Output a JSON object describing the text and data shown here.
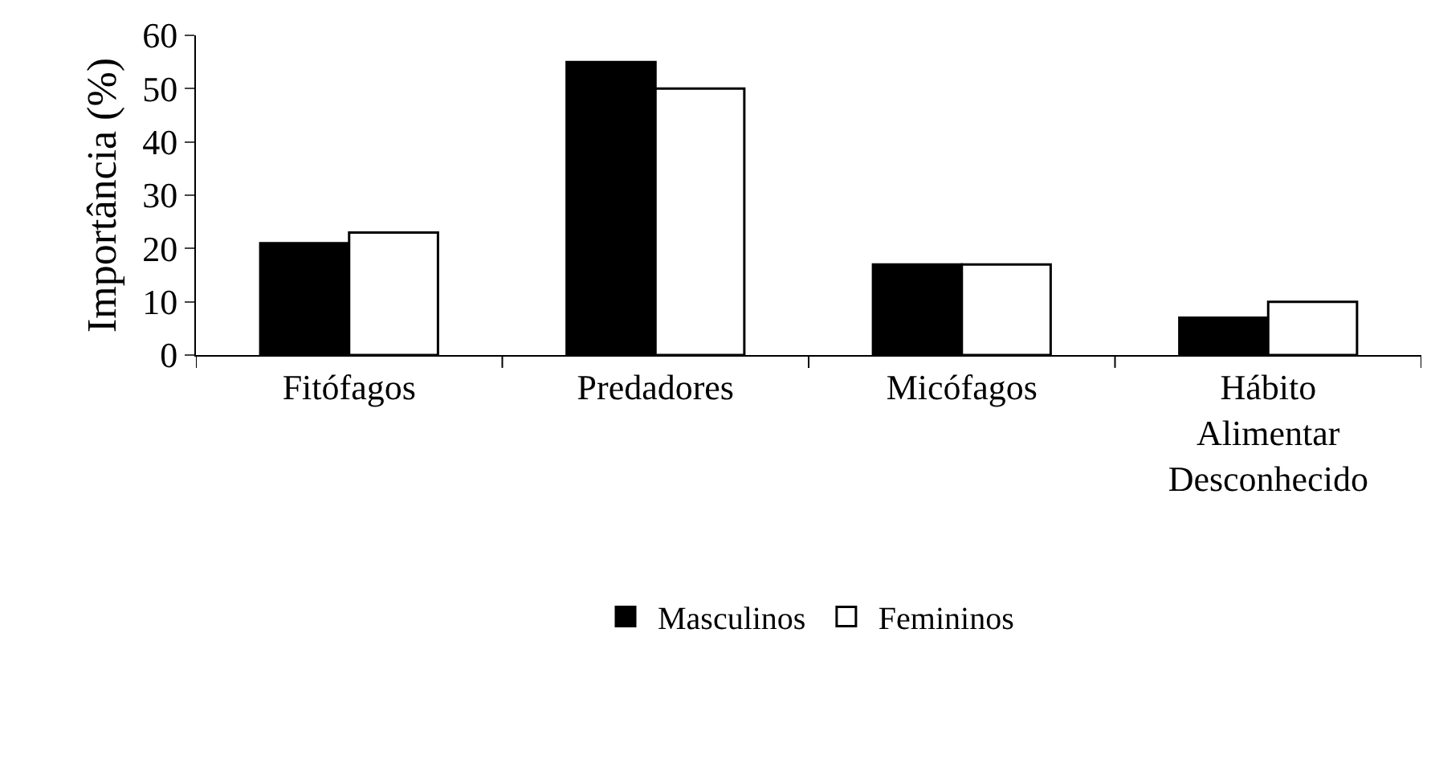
{
  "chart_data": {
    "type": "bar",
    "ylabel": "Importância (%)",
    "categories": [
      "Fitófagos",
      "Predadores",
      "Micófagos",
      "Hábito\nAlimentar\nDesconhecido"
    ],
    "series": [
      {
        "name": "Masculinos",
        "color": "#000000",
        "values": [
          21,
          55,
          17,
          7
        ]
      },
      {
        "name": "Femininos",
        "color": "#ffffff",
        "values": [
          23,
          50,
          17,
          10
        ]
      }
    ],
    "ylim": [
      0,
      60
    ],
    "yticks": [
      0,
      10,
      20,
      30,
      40,
      50,
      60
    ],
    "legend": "bottom"
  }
}
